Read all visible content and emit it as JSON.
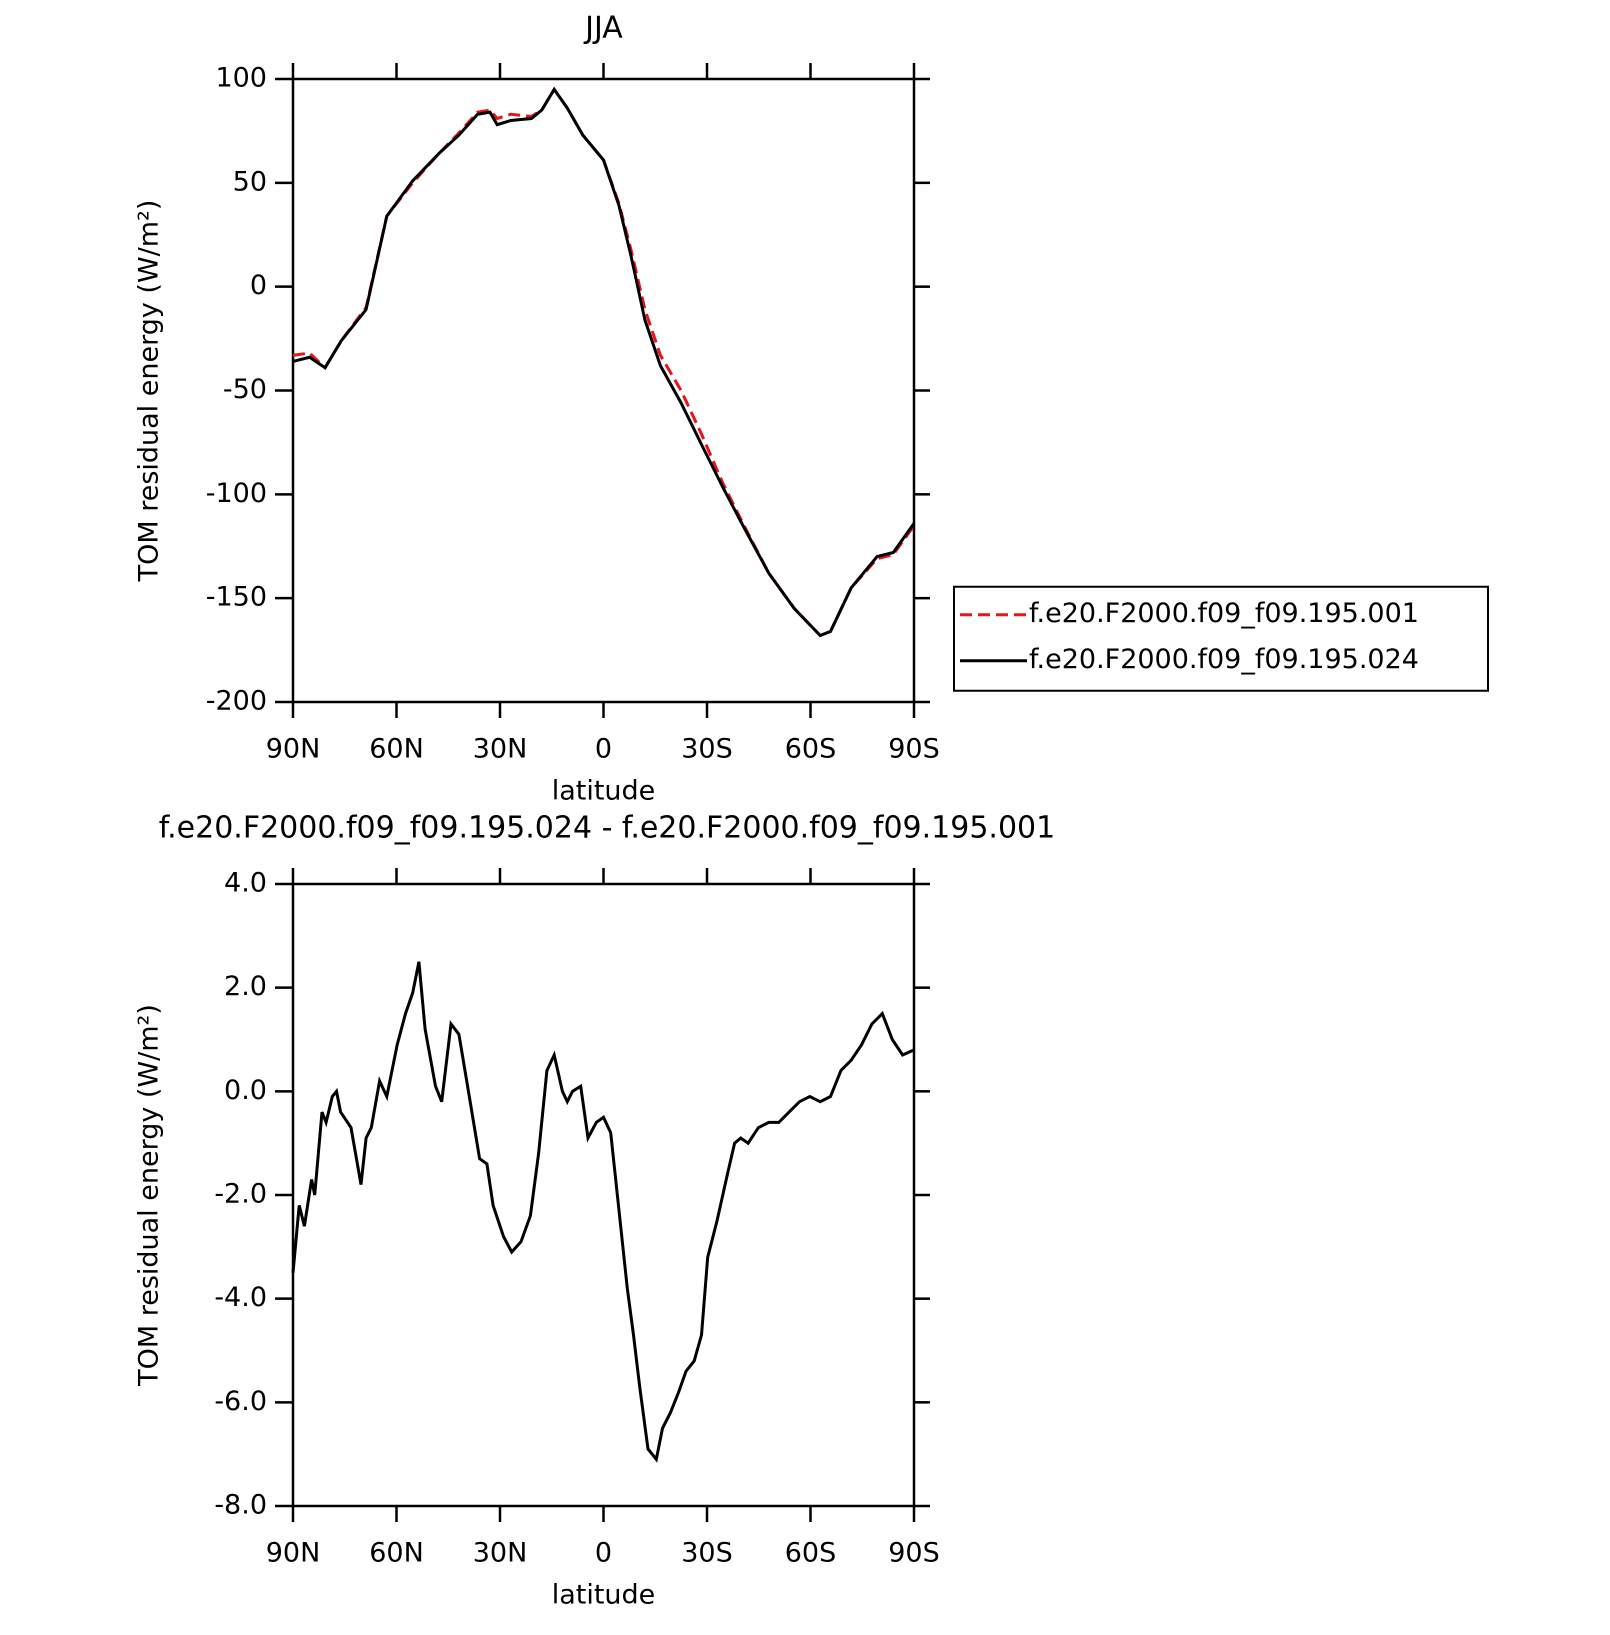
{
  "chart_data": [
    {
      "type": "line",
      "title": "JJA",
      "xlabel": "latitude",
      "ylabel": "TOM residual energy (W/m²)",
      "x": [
        90,
        85.2,
        80.7,
        76,
        68.8,
        62.8,
        55.3,
        47.8,
        41.9,
        36.5,
        32.9,
        30.8,
        26.9,
        20.9,
        17.9,
        14.3,
        10.5,
        6,
        0,
        -4.5,
        -8.1,
        -12,
        -16.5,
        -22.5,
        -28.4,
        -34.4,
        -40.4,
        -47.9,
        -55.3,
        -62.8,
        -65.8,
        -71.8,
        -79.3,
        -84,
        -90
      ],
      "series": [
        {
          "name": "f.e20.F2000.f09_f09.195.001",
          "color": "#e8141a",
          "dash": true,
          "values": [
            -33,
            -32,
            -39,
            -26,
            -10,
            34,
            50,
            64,
            74,
            84,
            85,
            81,
            83,
            82,
            85,
            95,
            86,
            73,
            61,
            40,
            17,
            -11,
            -33,
            -50,
            -71,
            -94,
            -114,
            -138,
            -155,
            -168,
            -166,
            -145,
            -131,
            -129,
            -115
          ]
        },
        {
          "name": "f.e20.F2000.f09_f09.195.024",
          "color": "#000000",
          "dash": false,
          "values": [
            -36,
            -34,
            -39,
            -26,
            -11,
            34,
            51,
            64,
            73,
            83,
            84,
            78,
            80,
            81,
            85,
            95,
            86,
            73,
            61,
            39,
            14,
            -16,
            -38,
            -56,
            -76,
            -96,
            -115,
            -138,
            -155,
            -168,
            -166,
            -145,
            -130,
            -128,
            -114
          ]
        }
      ],
      "xlim": [
        90,
        -90
      ],
      "xticks": [
        {
          "value": 90,
          "label": "90N"
        },
        {
          "value": 60,
          "label": "60N"
        },
        {
          "value": 30,
          "label": "30N"
        },
        0,
        {
          "value": -30,
          "label": "30S"
        },
        {
          "value": -60,
          "label": "60S"
        },
        {
          "value": -90,
          "label": "90S"
        }
      ],
      "ylim": [
        -200,
        100
      ],
      "yticks": [
        100,
        50,
        0,
        -50,
        -100,
        -150,
        -200
      ],
      "legend": "right"
    },
    {
      "type": "line",
      "title": "f.e20.F2000.f09_f09.195.024 - f.e20.F2000.f09_f09.195.001",
      "xlabel": "latitude",
      "ylabel": "TOM residual energy (W/m²)",
      "x": [
        90,
        88.2,
        86.7,
        84.6,
        83.7,
        81.6,
        80.4,
        78.6,
        77.4,
        76.2,
        73.2,
        70.3,
        68.8,
        67.3,
        64.9,
        62.8,
        59.8,
        57.4,
        55.3,
        53.5,
        51.7,
        48.7,
        46.9,
        44.2,
        41.9,
        38.9,
        35.9,
        33.8,
        32,
        29,
        26.6,
        23.9,
        21.2,
        18.8,
        16.4,
        14.3,
        11.9,
        10.5,
        9,
        6.6,
        4.5,
        2.1,
        0,
        -2.1,
        -4.5,
        -6.9,
        -8.7,
        -10.5,
        -12.9,
        -15.3,
        -17.1,
        -19.4,
        -21.8,
        -23.9,
        -26.3,
        -28.4,
        -30.2,
        -32.9,
        -35.9,
        -38,
        -39.8,
        -41.9,
        -44.9,
        -47.9,
        -50.8,
        -53.8,
        -56.8,
        -59.8,
        -62.8,
        -65.8,
        -68.8,
        -71.8,
        -74.8,
        -77.8,
        -80.8,
        -83.7,
        -86.7,
        -90
      ],
      "series": [
        {
          "color": "#000000",
          "values": [
            -3.5,
            -2.2,
            -2.6,
            -1.7,
            -2.0,
            -0.4,
            -0.6,
            -0.1,
            0.0,
            -0.4,
            -0.7,
            -1.8,
            -0.9,
            -0.7,
            0.2,
            -0.1,
            0.9,
            1.5,
            1.9,
            2.5,
            1.2,
            0.1,
            -0.2,
            1.3,
            1.1,
            -0.1,
            -1.3,
            -1.4,
            -2.2,
            -2.8,
            -3.1,
            -2.9,
            -2.4,
            -1.2,
            0.4,
            0.7,
            0.0,
            -0.2,
            0.0,
            0.1,
            -0.9,
            -0.6,
            -0.5,
            -0.8,
            -2.3,
            -3.8,
            -4.7,
            -5.7,
            -6.9,
            -7.1,
            -6.5,
            -6.2,
            -5.8,
            -5.4,
            -5.2,
            -4.7,
            -3.2,
            -2.5,
            -1.6,
            -1.0,
            -0.9,
            -1.0,
            -0.7,
            -0.6,
            -0.6,
            -0.4,
            -0.2,
            -0.1,
            -0.2,
            -0.1,
            0.4,
            0.6,
            0.9,
            1.3,
            1.5,
            1.0,
            0.7,
            0.8
          ]
        }
      ],
      "xlim": [
        90,
        -90
      ],
      "xticks": [
        {
          "value": 90,
          "label": "90N"
        },
        {
          "value": 60,
          "label": "60N"
        },
        {
          "value": 30,
          "label": "30N"
        },
        0,
        {
          "value": -30,
          "label": "30S"
        },
        {
          "value": -60,
          "label": "60S"
        },
        {
          "value": -90,
          "label": "90S"
        }
      ],
      "ylim": [
        -8,
        4
      ],
      "yticks": [
        {
          "value": 4,
          "label": "4.0"
        },
        {
          "value": 2,
          "label": "2.0"
        },
        {
          "value": 0,
          "label": "0.0"
        },
        {
          "value": -2,
          "label": "-2.0"
        },
        {
          "value": -4,
          "label": "-4.0"
        },
        {
          "value": -6,
          "label": "-6.0"
        },
        {
          "value": -8,
          "label": "-8.0"
        }
      ]
    }
  ]
}
